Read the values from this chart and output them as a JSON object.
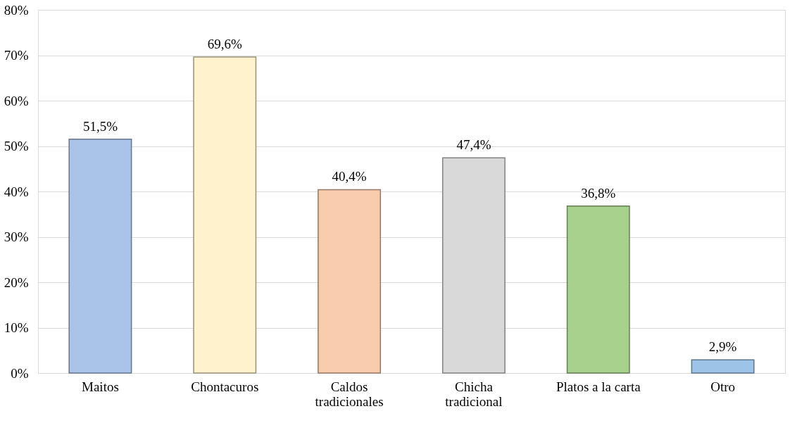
{
  "chart_data": {
    "type": "bar",
    "categories": [
      "Maitos",
      "Chontacuros",
      "Caldos\ntradicionales",
      "Chicha\ntradicional",
      "Platos a la carta",
      "Otro"
    ],
    "values": [
      51.5,
      69.6,
      40.4,
      47.4,
      36.8,
      2.9
    ],
    "value_labels": [
      "51,5%",
      "69,6%",
      "40,4%",
      "47,4%",
      "36,8%",
      "2,9%"
    ],
    "colors": [
      "#a9c4e8",
      "#fff2cc",
      "#f8cbad",
      "#d9d9d9",
      "#a9d18e",
      "#9dc3e6"
    ],
    "ylim": [
      0,
      80
    ],
    "yticks": [
      {
        "value": 0,
        "label": "0%"
      },
      {
        "value": 10,
        "label": "10%"
      },
      {
        "value": 20,
        "label": "20%"
      },
      {
        "value": 30,
        "label": "30%"
      },
      {
        "value": 40,
        "label": "40%"
      },
      {
        "value": 50,
        "label": "50%"
      },
      {
        "value": 60,
        "label": "60%"
      },
      {
        "value": 70,
        "label": "70%"
      },
      {
        "value": 80,
        "label": "80%"
      }
    ],
    "grid": "y"
  }
}
